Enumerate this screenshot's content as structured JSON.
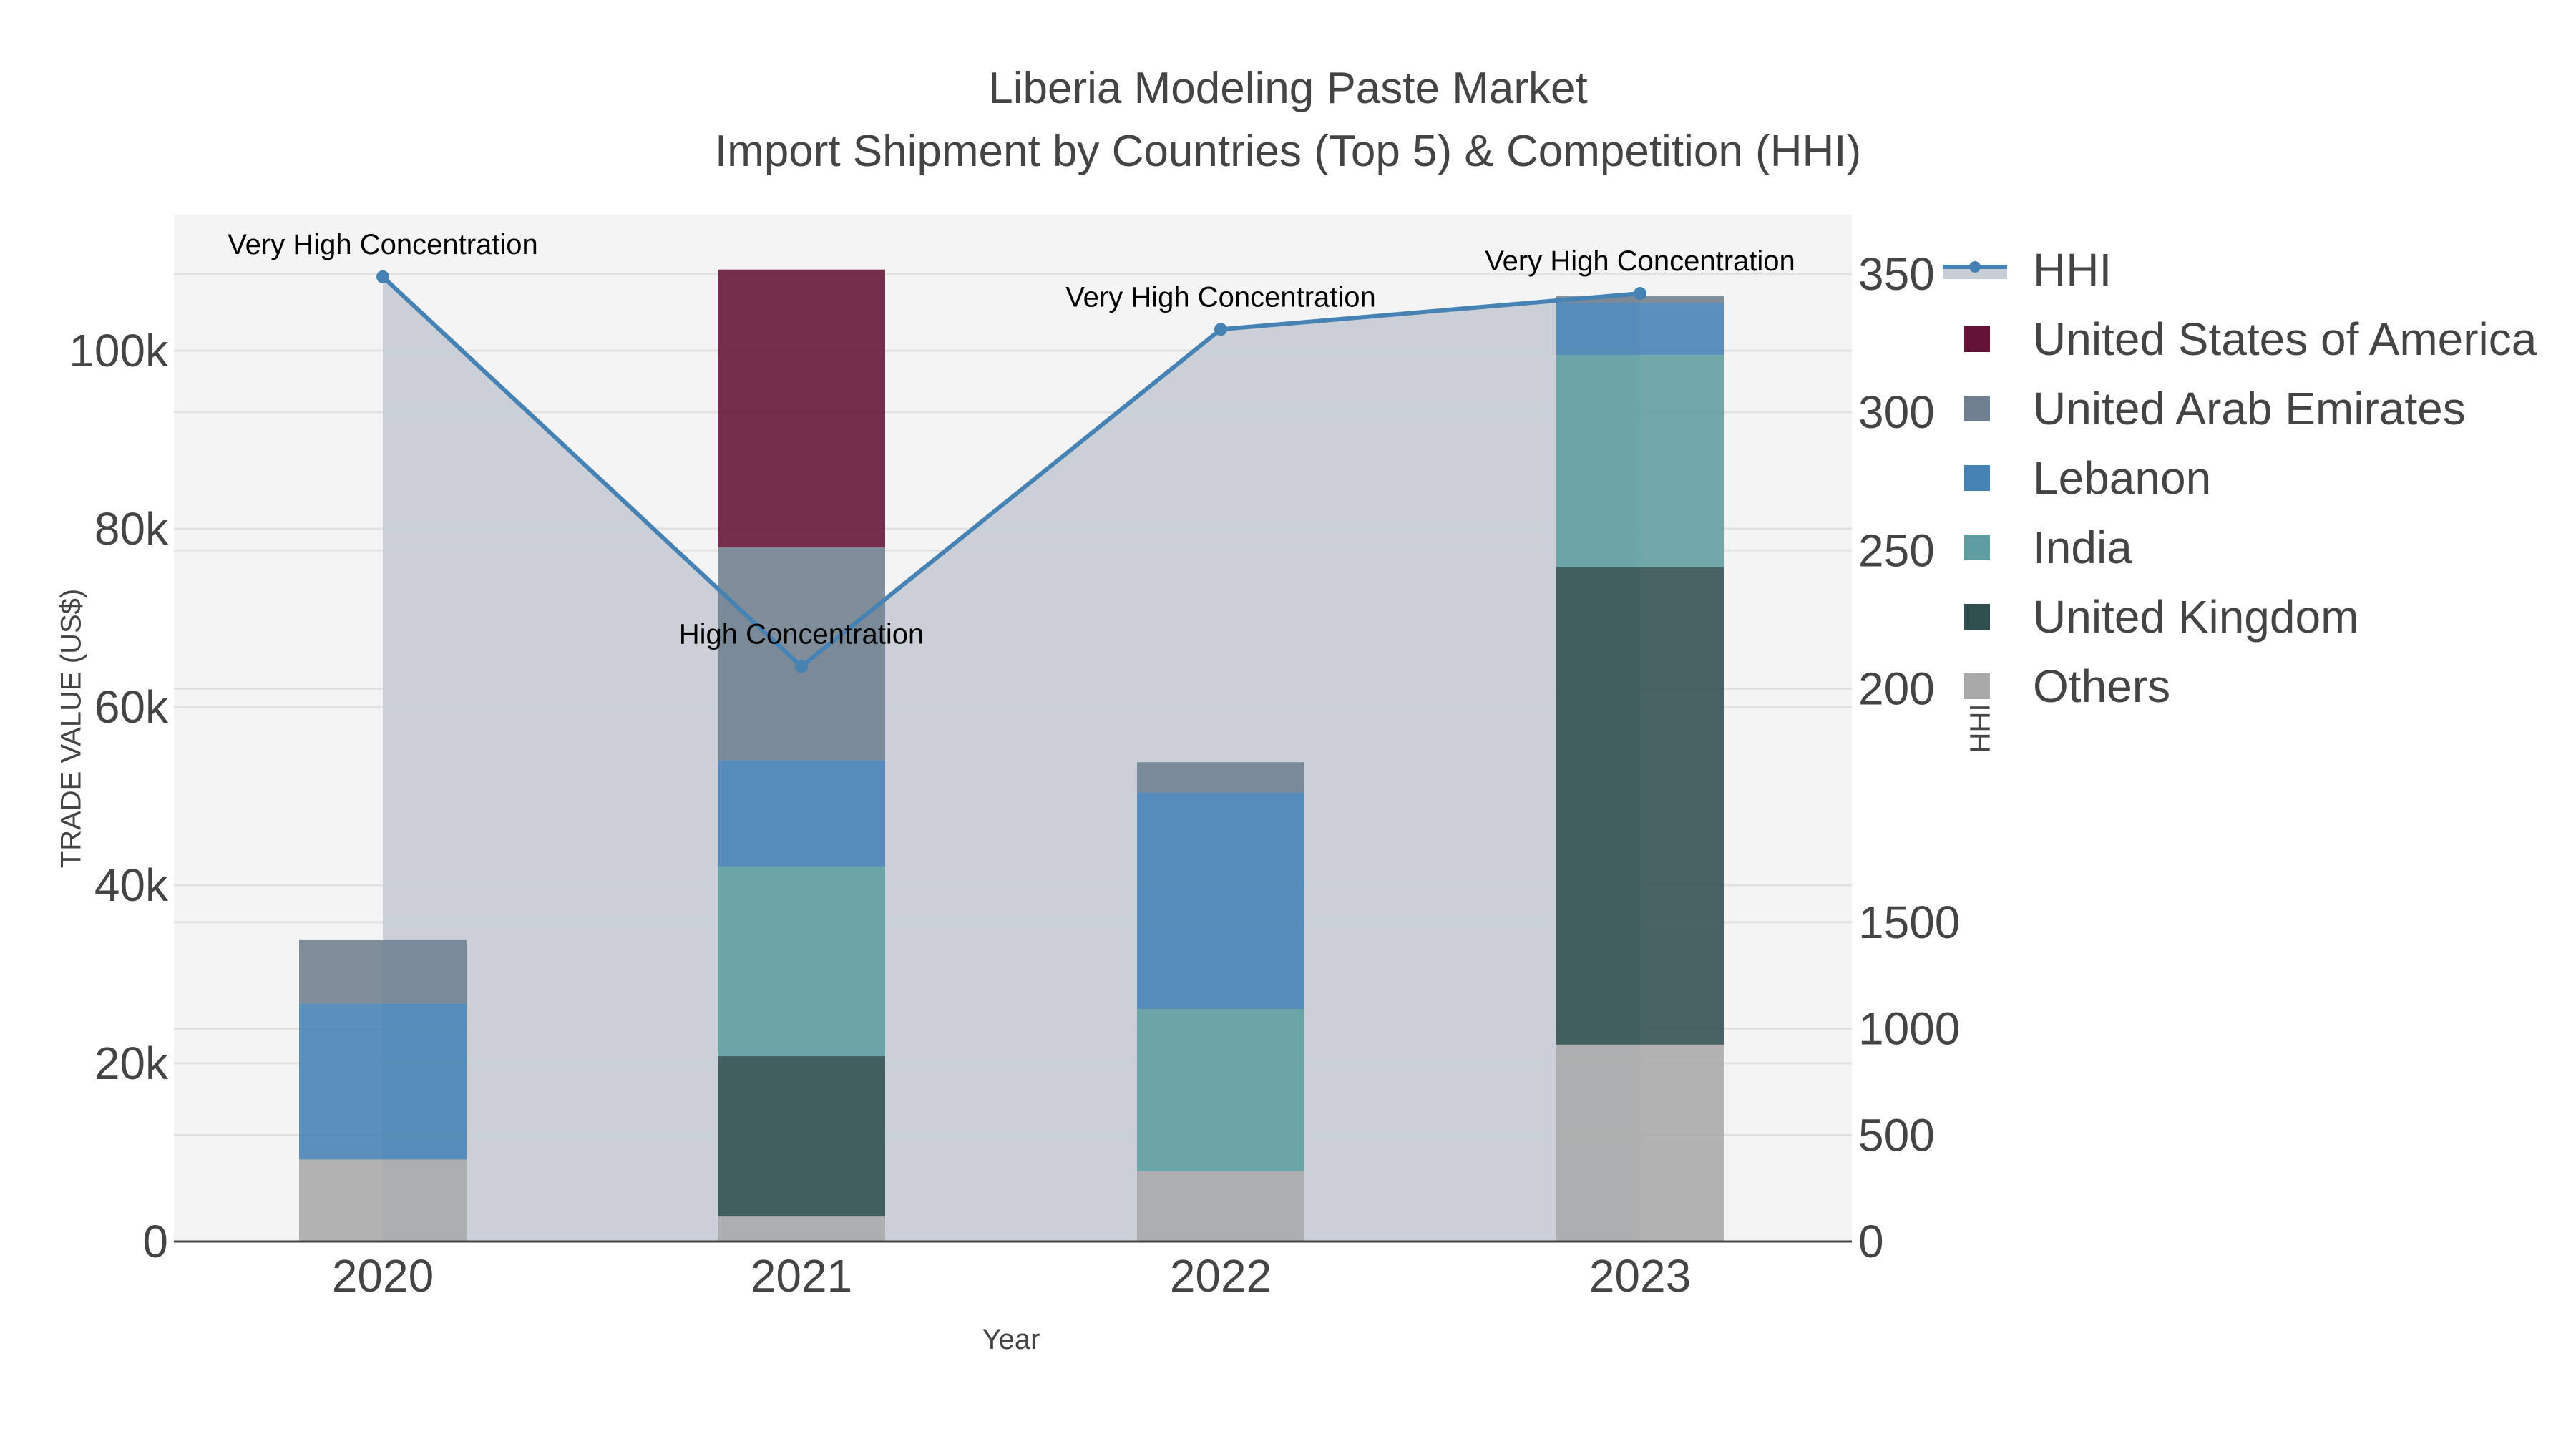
{
  "title": {
    "line1": "Liberia Modeling Paste Market",
    "line2": "Import Shipment by Countries (Top 5) & Competition (HHI)"
  },
  "axes": {
    "x_title": "Year",
    "y_title": "TRADE VALUE (US$)",
    "y2_title": "HHI",
    "y_ticks": [
      "0",
      "20k",
      "40k",
      "60k",
      "80k",
      "100k"
    ],
    "y2_ticks": [
      "0",
      "500",
      "1000",
      "1500",
      "200",
      "250",
      "300",
      "350"
    ]
  },
  "legend": {
    "items": [
      {
        "label": "HHI",
        "type": "line",
        "color": "#4682b4"
      },
      {
        "label": "United States of America",
        "type": "bar",
        "color": "#621336"
      },
      {
        "label": "United Arab Emirates",
        "type": "bar",
        "color": "#708090"
      },
      {
        "label": "Lebanon",
        "type": "bar",
        "color": "#4682b4"
      },
      {
        "label": "India",
        "type": "bar",
        "color": "#5f9ea0"
      },
      {
        "label": "United Kingdom",
        "type": "bar",
        "color": "#2f4f4f"
      },
      {
        "label": "Others",
        "type": "bar",
        "color": "#a9a9a9"
      }
    ]
  },
  "annotations": [
    {
      "year": "2020",
      "text": "Very High Concentration"
    },
    {
      "year": "2021",
      "text": "High Concentration"
    },
    {
      "year": "2022",
      "text": "Very High Concentration"
    },
    {
      "year": "2023",
      "text": "Very High Concentration"
    }
  ],
  "colors": {
    "plot_bg": "#f4f4f4",
    "hhi_area": "#c8ced6",
    "hhi_line": "#4682b4",
    "grid": "#e2e2e2",
    "axis_line": "#444444"
  },
  "chart_data": {
    "type": "bar",
    "title": "Liberia Modeling Paste Market — Import Shipment by Countries (Top 5) & Competition (HHI)",
    "xlabel": "Year",
    "ylabel": "TRADE VALUE (US$)",
    "y2label": "HHI",
    "categories": [
      "2020",
      "2021",
      "2022",
      "2023"
    ],
    "stacked": true,
    "ylim": [
      0,
      115000
    ],
    "y2_tick_labels": [
      "0",
      "500",
      "1000",
      "1500",
      "200",
      "250",
      "300",
      "350"
    ],
    "grid": true,
    "legend_position": "right",
    "series": [
      {
        "name": "Others",
        "color": "#a9a9a9",
        "values": [
          9200,
          2800,
          7900,
          22100
        ]
      },
      {
        "name": "United Kingdom",
        "color": "#2f4f4f",
        "values": [
          0,
          18000,
          0,
          53600
        ]
      },
      {
        "name": "India",
        "color": "#5f9ea0",
        "values": [
          0,
          21300,
          18200,
          23800
        ]
      },
      {
        "name": "Lebanon",
        "color": "#4682b4",
        "values": [
          17500,
          11900,
          24300,
          5800
        ]
      },
      {
        "name": "United Arab Emirates",
        "color": "#708090",
        "values": [
          7200,
          23900,
          3400,
          800
        ]
      },
      {
        "name": "United States of America",
        "color": "#621336",
        "values": [
          0,
          31200,
          0,
          0
        ]
      }
    ],
    "line_series": {
      "name": "HHI",
      "axis": "y2",
      "type": "line+area",
      "y2_positions_relative_350_top": [
        349,
        208,
        330,
        343
      ],
      "labels": [
        "Very High Concentration",
        "High Concentration",
        "Very High Concentration",
        "Very High Concentration"
      ]
    }
  }
}
